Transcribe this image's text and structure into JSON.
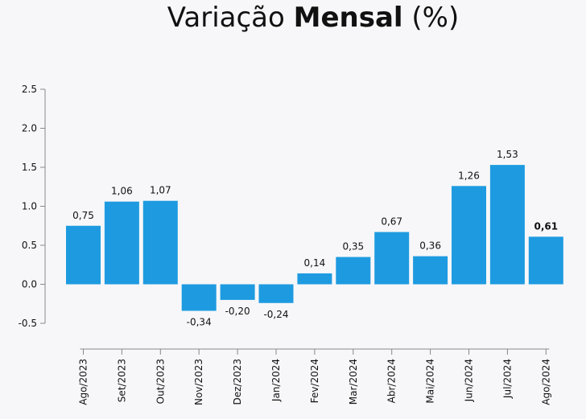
{
  "chart_data": {
    "type": "bar",
    "title": {
      "part1": "Variação ",
      "part2": "Mensal",
      "part3": " (%)"
    },
    "categories": [
      "Ago/2023",
      "Set/2023",
      "Out/2023",
      "Nov/2023",
      "Dez/2023",
      "Jan/2024",
      "Fev/2024",
      "Mar/2024",
      "Abr/2024",
      "Mai/2024",
      "Jun/2024",
      "Jul/2024",
      "Ago/2024"
    ],
    "values": [
      0.75,
      1.06,
      1.07,
      -0.34,
      -0.2,
      -0.24,
      0.14,
      0.35,
      0.67,
      0.36,
      1.26,
      1.53,
      0.61
    ],
    "value_labels": [
      "0,75",
      "1,06",
      "1,07",
      "-0,34",
      "-0,20",
      "-0,24",
      "0,14",
      "0,35",
      "0,67",
      "0,36",
      "1,26",
      "1,53",
      "0,61"
    ],
    "highlight_last_label": true,
    "yticks": [
      "2.5",
      "2.0",
      "1.5",
      "1.0",
      "0.5",
      "0.0",
      "-0.5"
    ],
    "ytick_values": [
      2.5,
      2.0,
      1.5,
      1.0,
      0.5,
      0.0,
      -0.5
    ],
    "ylim": [
      -0.5,
      2.5
    ],
    "xlabel": "",
    "ylabel": "",
    "grid": false,
    "legend": "none",
    "colors": {
      "bar": "#1e9be0",
      "axis": "#888888",
      "text": "#111111"
    }
  }
}
